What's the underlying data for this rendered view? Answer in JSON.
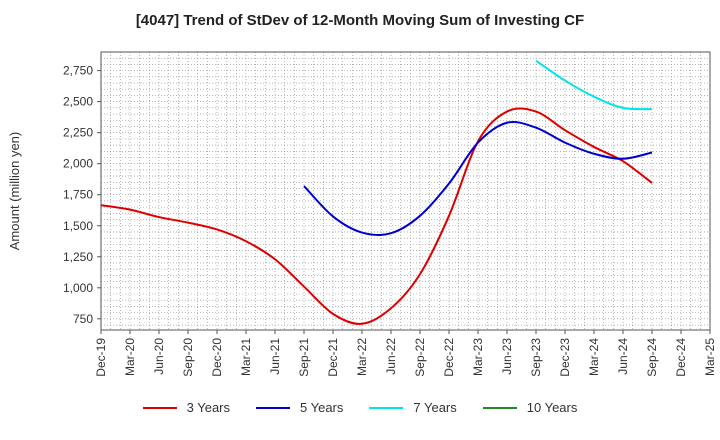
{
  "chart_data": {
    "type": "line",
    "title": "[4047]  Trend of StDev of 12-Month Moving Sum of Investing CF",
    "ylabel": "Amount (million yen)",
    "xlabel": "",
    "ylim": [
      660,
      2900
    ],
    "yticks": [
      750,
      1000,
      1250,
      1500,
      1750,
      2000,
      2250,
      2500,
      2750
    ],
    "ytick_labels": [
      "750",
      "1,000",
      "1,250",
      "1,500",
      "1,750",
      "2,000",
      "2,250",
      "2,500",
      "2,750"
    ],
    "categories": [
      "Dec-19",
      "Mar-20",
      "Jun-20",
      "Sep-20",
      "Dec-20",
      "Mar-21",
      "Jun-21",
      "Sep-21",
      "Dec-21",
      "Mar-22",
      "Jun-22",
      "Sep-22",
      "Dec-22",
      "Mar-23",
      "Jun-23",
      "Sep-23",
      "Dec-23",
      "Mar-24",
      "Jun-24",
      "Sep-24",
      "Dec-24",
      "Mar-25"
    ],
    "grid": true,
    "legend_position": "bottom",
    "series": [
      {
        "name": "3 Years",
        "color": "#dd0000",
        "values": [
          1665,
          1630,
          1570,
          1525,
          1470,
          1375,
          1230,
          1010,
          790,
          710,
          835,
          1110,
          1580,
          2180,
          2420,
          2420,
          2270,
          2135,
          2020,
          1845,
          null,
          null
        ]
      },
      {
        "name": "5 Years",
        "color": "#0000cc",
        "values": [
          null,
          null,
          null,
          null,
          null,
          null,
          null,
          1820,
          1575,
          1445,
          1440,
          1580,
          1840,
          2170,
          2330,
          2290,
          2170,
          2080,
          2040,
          2090,
          null,
          null
        ]
      },
      {
        "name": "7 Years",
        "color": "#00e5e5",
        "values": [
          null,
          null,
          null,
          null,
          null,
          null,
          null,
          null,
          null,
          null,
          null,
          null,
          null,
          null,
          null,
          2830,
          2670,
          2540,
          2450,
          2440,
          null,
          null
        ]
      },
      {
        "name": "10 Years",
        "color": "#228b22",
        "values": [
          null,
          null,
          null,
          null,
          null,
          null,
          null,
          null,
          null,
          null,
          null,
          null,
          null,
          null,
          null,
          null,
          null,
          null,
          null,
          null,
          null,
          null
        ]
      }
    ]
  }
}
